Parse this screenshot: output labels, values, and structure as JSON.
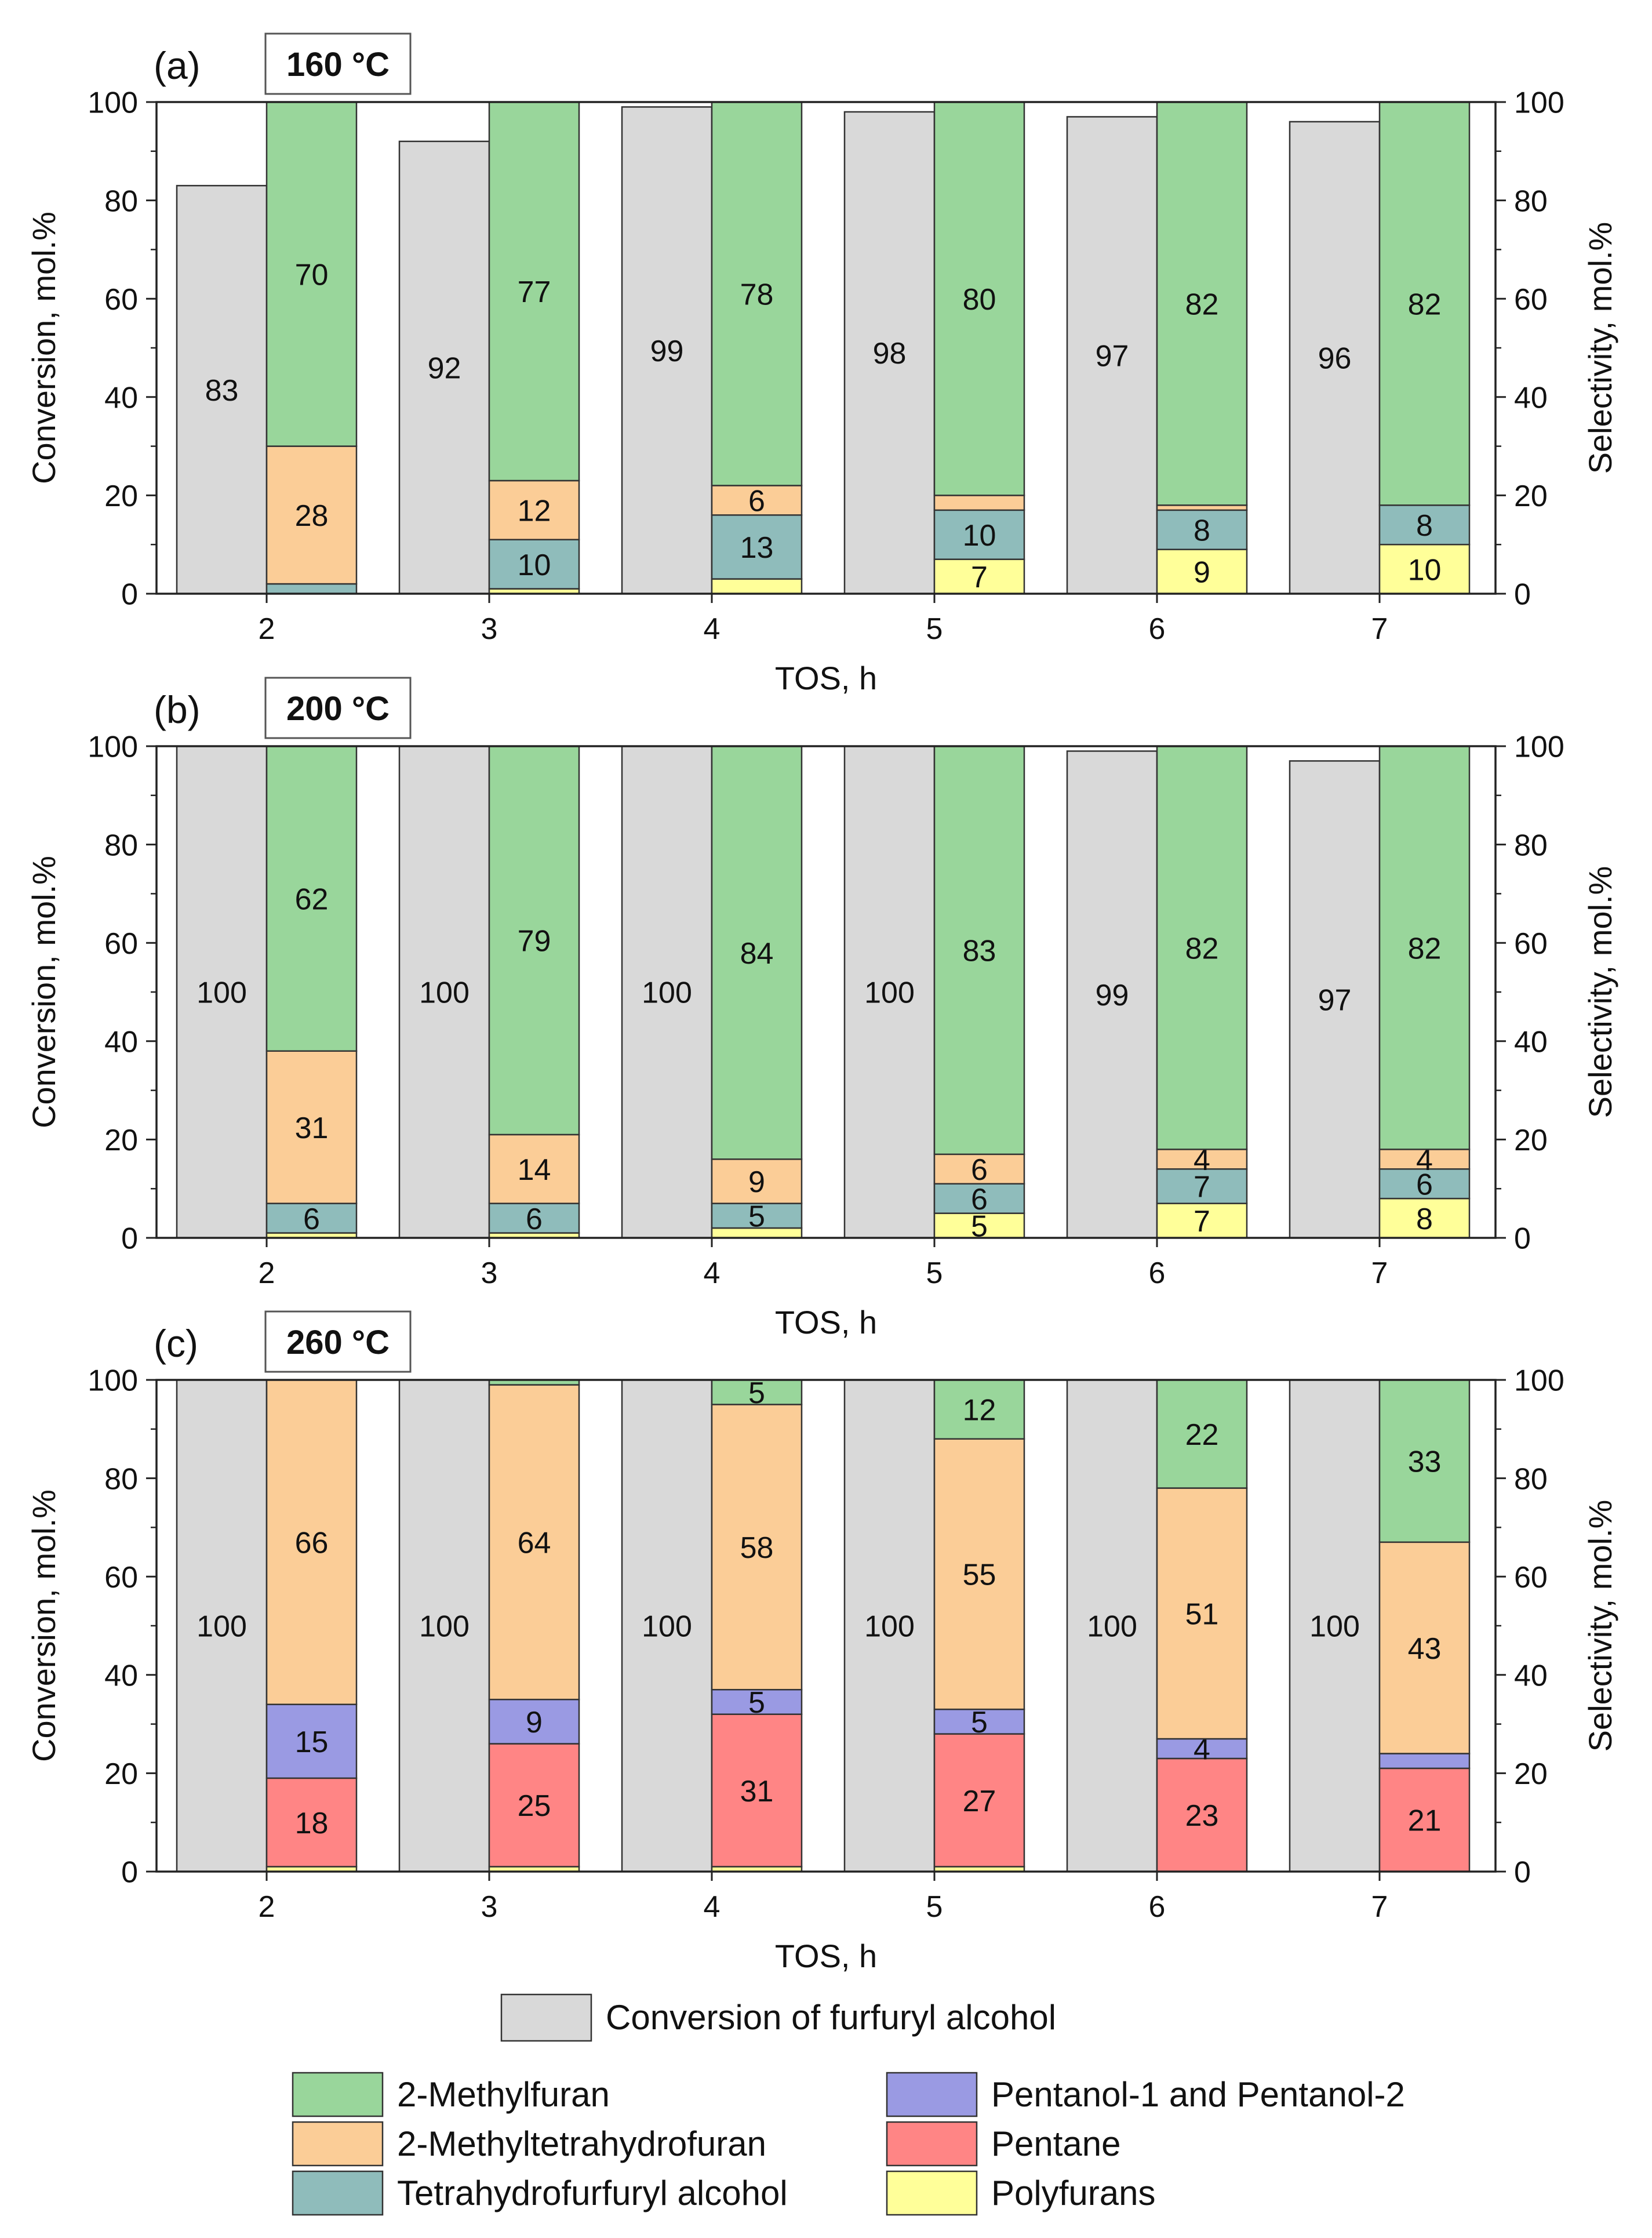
{
  "colors": {
    "conversion": "#d9d9d9",
    "2-Methylfuran": "#99d69b",
    "2-Methyltetrahydrofuran": "#fbcd97",
    "Tetrahydrofurfuryl alcohol": "#8fbcbb",
    "Pentanol-1 and Pentanol-2": "#9a9ae3",
    "Pentane": "#ff8585",
    "Polyfurans": "#ffff99"
  },
  "legend": {
    "conversion_label": "Conversion of furfuryl alcohol",
    "items": [
      {
        "key": "2-Methylfuran",
        "label": "2-Methylfuran"
      },
      {
        "key": "Pentanol-1 and Pentanol-2",
        "label": "Pentanol-1 and Pentanol-2"
      },
      {
        "key": "2-Methyltetrahydrofuran",
        "label": "2-Methyltetrahydrofuran"
      },
      {
        "key": "Pentane",
        "label": "Pentane"
      },
      {
        "key": "Tetrahydrofurfuryl alcohol",
        "label": "Tetrahydrofurfuryl alcohol"
      },
      {
        "key": "Polyfurans",
        "label": "Polyfurans"
      }
    ]
  },
  "chart_data": [
    {
      "type": "bar",
      "panel_label": "(a)",
      "title": "160 °C",
      "xlabel": "TOS, h",
      "ylabel_left": "Conversion, mol.%",
      "ylabel_right": "Selectivity, mol.%",
      "ylim": [
        0,
        100
      ],
      "yticks": [
        0,
        20,
        40,
        60,
        80,
        100
      ],
      "categories": [
        "2",
        "3",
        "4",
        "5",
        "6",
        "7"
      ],
      "conversion": [
        83,
        92,
        99,
        98,
        97,
        96
      ],
      "conversion_labels": [
        "83",
        "92",
        "99",
        "98",
        "97",
        "96"
      ],
      "selectivity_series": [
        {
          "name": "Polyfurans",
          "values": [
            0,
            1,
            3,
            7,
            9,
            10
          ],
          "labels": [
            "",
            "",
            "",
            "7",
            "9",
            "10"
          ]
        },
        {
          "name": "Pentane",
          "values": [
            0,
            0,
            0,
            0,
            0,
            0
          ],
          "labels": [
            "",
            "",
            "",
            "",
            "",
            ""
          ]
        },
        {
          "name": "Tetrahydrofurfuryl alcohol",
          "values": [
            2,
            10,
            13,
            10,
            8,
            8
          ],
          "labels": [
            "",
            "10",
            "13",
            "10",
            "8",
            "8"
          ]
        },
        {
          "name": "Pentanol-1 and Pentanol-2",
          "values": [
            0,
            0,
            0,
            0,
            0,
            0
          ],
          "labels": [
            "",
            "",
            "",
            "",
            "",
            ""
          ]
        },
        {
          "name": "2-Methyltetrahydrofuran",
          "values": [
            28,
            12,
            6,
            3,
            1,
            0
          ],
          "labels": [
            "28",
            "12",
            "6",
            "",
            "",
            ""
          ]
        },
        {
          "name": "2-Methylfuran",
          "values": [
            70,
            77,
            78,
            80,
            82,
            82
          ],
          "labels": [
            "70",
            "77",
            "78",
            "80",
            "82",
            "82"
          ]
        }
      ]
    },
    {
      "type": "bar",
      "panel_label": "(b)",
      "title": "200 °C",
      "xlabel": "TOS, h",
      "ylabel_left": "Conversion, mol.%",
      "ylabel_right": "Selectivity, mol.%",
      "ylim": [
        0,
        100
      ],
      "yticks": [
        0,
        20,
        40,
        60,
        80,
        100
      ],
      "categories": [
        "2",
        "3",
        "4",
        "5",
        "6",
        "7"
      ],
      "conversion": [
        100,
        100,
        100,
        100,
        99,
        97
      ],
      "conversion_labels": [
        "100",
        "100",
        "100",
        "100",
        "99",
        "97"
      ],
      "selectivity_series": [
        {
          "name": "Polyfurans",
          "values": [
            1,
            1,
            2,
            5,
            7,
            8
          ],
          "labels": [
            "",
            "",
            "",
            "5",
            "7",
            "8"
          ]
        },
        {
          "name": "Pentane",
          "values": [
            0,
            0,
            0,
            0,
            0,
            0
          ],
          "labels": [
            "",
            "",
            "",
            "",
            "",
            ""
          ]
        },
        {
          "name": "Tetrahydrofurfuryl alcohol",
          "values": [
            6,
            6,
            5,
            6,
            7,
            6
          ],
          "labels": [
            "6",
            "6",
            "5",
            "6",
            "7",
            "6"
          ]
        },
        {
          "name": "Pentanol-1 and Pentanol-2",
          "values": [
            0,
            0,
            0,
            0,
            0,
            0
          ],
          "labels": [
            "",
            "",
            "",
            "",
            "",
            ""
          ]
        },
        {
          "name": "2-Methyltetrahydrofuran",
          "values": [
            31,
            14,
            9,
            6,
            4,
            4
          ],
          "labels": [
            "31",
            "14",
            "9",
            "6",
            "4",
            "4"
          ]
        },
        {
          "name": "2-Methylfuran",
          "values": [
            62,
            79,
            84,
            83,
            82,
            82
          ],
          "labels": [
            "62",
            "79",
            "84",
            "83",
            "82",
            "82"
          ]
        }
      ]
    },
    {
      "type": "bar",
      "panel_label": "(c)",
      "title": "260 °C",
      "xlabel": "TOS, h",
      "ylabel_left": "Conversion, mol.%",
      "ylabel_right": "Selectivity, mol.%",
      "ylim": [
        0,
        100
      ],
      "yticks": [
        0,
        20,
        40,
        60,
        80,
        100
      ],
      "categories": [
        "2",
        "3",
        "4",
        "5",
        "6",
        "7"
      ],
      "conversion": [
        100,
        100,
        100,
        100,
        100,
        100
      ],
      "conversion_labels": [
        "100",
        "100",
        "100",
        "100",
        "100",
        "100"
      ],
      "selectivity_series": [
        {
          "name": "Polyfurans",
          "values": [
            1,
            1,
            1,
            1,
            0,
            0
          ],
          "labels": [
            "",
            "",
            "",
            "",
            "",
            ""
          ]
        },
        {
          "name": "Pentane",
          "values": [
            18,
            25,
            31,
            27,
            23,
            21
          ],
          "labels": [
            "18",
            "25",
            "31",
            "27",
            "23",
            "21"
          ]
        },
        {
          "name": "Tetrahydrofurfuryl alcohol",
          "values": [
            0,
            0,
            0,
            0,
            0,
            0
          ],
          "labels": [
            "",
            "",
            "",
            "",
            "",
            ""
          ]
        },
        {
          "name": "Pentanol-1 and Pentanol-2",
          "values": [
            15,
            9,
            5,
            5,
            4,
            3
          ],
          "labels": [
            "15",
            "9",
            "5",
            "5",
            "4",
            ""
          ]
        },
        {
          "name": "2-Methyltetrahydrofuran",
          "values": [
            66,
            64,
            58,
            55,
            51,
            43
          ],
          "labels": [
            "66",
            "64",
            "58",
            "55",
            "51",
            "43"
          ]
        },
        {
          "name": "2-Methylfuran",
          "values": [
            0,
            1,
            5,
            12,
            22,
            33
          ],
          "labels": [
            "",
            "",
            "5",
            "12",
            "22",
            "33"
          ]
        }
      ]
    }
  ]
}
